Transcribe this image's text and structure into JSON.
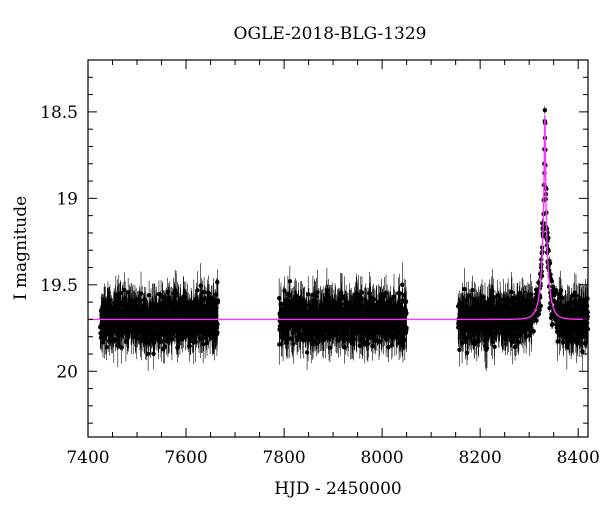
{
  "chart_data": {
    "type": "scatter",
    "title": "OGLE-2018-BLG-1329",
    "xlabel": "HJD - 2450000",
    "ylabel": "I magnitude",
    "xlim": [
      7400,
      8420
    ],
    "ylim": [
      20.38,
      18.2
    ],
    "y_inverted": true,
    "x_ticks": [
      7400,
      7600,
      7800,
      8000,
      8200,
      8400
    ],
    "x_tick_labels": [
      "7400",
      "7600",
      "7800",
      "8000",
      "8200",
      "8400"
    ],
    "y_ticks": [
      18.5,
      19,
      19.5,
      20
    ],
    "y_tick_labels": [
      "18.5",
      "19",
      "19.5",
      "20"
    ],
    "grid": false,
    "colors": {
      "data": "#000000",
      "model": "#ff33ff",
      "model_overlay": "#7a2a6a"
    },
    "series": [
      {
        "kind": "observations_with_errorbars",
        "seasons": [
          {
            "x_start": 7425,
            "x_end": 7665,
            "baseline_mag": 19.7,
            "scatter": 0.13,
            "error": 0.11
          },
          {
            "x_start": 7790,
            "x_end": 8050,
            "baseline_mag": 19.7,
            "scatter": 0.13,
            "error": 0.11
          },
          {
            "x_start": 8155,
            "x_end": 8420,
            "baseline_mag": 19.7,
            "scatter": 0.13,
            "error": 0.11
          }
        ]
      },
      {
        "kind": "model_curve",
        "baseline_mag": 19.7,
        "peak_time": 8332,
        "peak_mag": 18.52,
        "u0": 0.055,
        "tE": 13
      }
    ]
  }
}
